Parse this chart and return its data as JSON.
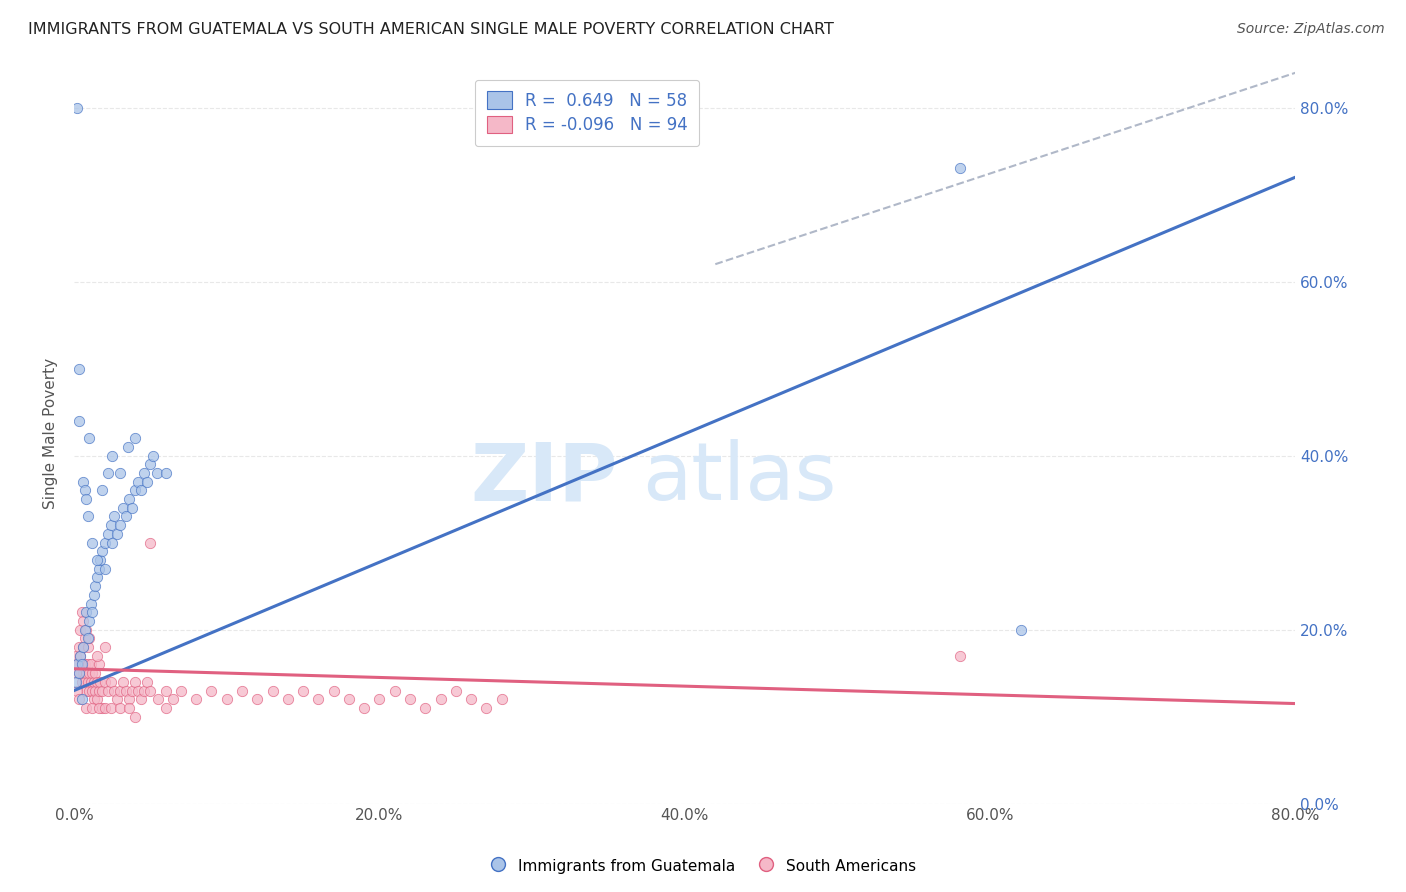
{
  "title": "IMMIGRANTS FROM GUATEMALA VS SOUTH AMERICAN SINGLE MALE POVERTY CORRELATION CHART",
  "source": "Source: ZipAtlas.com",
  "ylabel": "Single Male Poverty",
  "xmin": 0.0,
  "xmax": 0.8,
  "ymin": 0.0,
  "ymax": 0.85,
  "right_yticks": [
    0.0,
    0.2,
    0.4,
    0.6,
    0.8
  ],
  "right_yticklabels": [
    "0.0%",
    "20.0%",
    "40.0%",
    "60.0%",
    "80.0%"
  ],
  "xtick_labels": [
    "0.0%",
    "20.0%",
    "40.0%",
    "60.0%",
    "80.0%"
  ],
  "xtick_positions": [
    0.0,
    0.2,
    0.4,
    0.6,
    0.8
  ],
  "color_blue": "#aac4e8",
  "color_pink": "#f5b8c8",
  "line_blue": "#4472c4",
  "line_pink": "#e06080",
  "watermark_color": "#d8e8f8",
  "background_color": "#ffffff",
  "grid_color": "#e8e8e8",
  "title_color": "#222222",
  "axis_label_color": "#555555",
  "tick_color": "#555555",
  "blue_line_x": [
    0.0,
    0.8
  ],
  "blue_line_y": [
    0.13,
    0.72
  ],
  "pink_line_x": [
    0.0,
    0.8
  ],
  "pink_line_y": [
    0.155,
    0.115
  ],
  "diag_line_x": [
    0.42,
    0.8
  ],
  "diag_line_y": [
    0.62,
    0.84
  ],
  "guatemalan_points": [
    [
      0.001,
      0.14
    ],
    [
      0.002,
      0.16
    ],
    [
      0.003,
      0.15
    ],
    [
      0.004,
      0.17
    ],
    [
      0.005,
      0.16
    ],
    [
      0.006,
      0.18
    ],
    [
      0.007,
      0.2
    ],
    [
      0.008,
      0.22
    ],
    [
      0.009,
      0.19
    ],
    [
      0.01,
      0.21
    ],
    [
      0.011,
      0.23
    ],
    [
      0.012,
      0.22
    ],
    [
      0.013,
      0.24
    ],
    [
      0.014,
      0.25
    ],
    [
      0.015,
      0.26
    ],
    [
      0.016,
      0.27
    ],
    [
      0.017,
      0.28
    ],
    [
      0.018,
      0.29
    ],
    [
      0.02,
      0.3
    ],
    [
      0.022,
      0.31
    ],
    [
      0.024,
      0.32
    ],
    [
      0.026,
      0.33
    ],
    [
      0.028,
      0.31
    ],
    [
      0.03,
      0.32
    ],
    [
      0.032,
      0.34
    ],
    [
      0.034,
      0.33
    ],
    [
      0.036,
      0.35
    ],
    [
      0.038,
      0.34
    ],
    [
      0.04,
      0.36
    ],
    [
      0.042,
      0.37
    ],
    [
      0.044,
      0.36
    ],
    [
      0.046,
      0.38
    ],
    [
      0.048,
      0.37
    ],
    [
      0.05,
      0.39
    ],
    [
      0.052,
      0.4
    ],
    [
      0.054,
      0.38
    ],
    [
      0.003,
      0.44
    ],
    [
      0.01,
      0.42
    ],
    [
      0.018,
      0.36
    ],
    [
      0.022,
      0.38
    ],
    [
      0.025,
      0.4
    ],
    [
      0.03,
      0.38
    ],
    [
      0.035,
      0.41
    ],
    [
      0.04,
      0.42
    ],
    [
      0.006,
      0.37
    ],
    [
      0.007,
      0.36
    ],
    [
      0.008,
      0.35
    ],
    [
      0.009,
      0.33
    ],
    [
      0.012,
      0.3
    ],
    [
      0.015,
      0.28
    ],
    [
      0.02,
      0.27
    ],
    [
      0.025,
      0.3
    ],
    [
      0.002,
      0.8
    ],
    [
      0.06,
      0.38
    ],
    [
      0.58,
      0.73
    ],
    [
      0.005,
      0.12
    ],
    [
      0.62,
      0.2
    ],
    [
      0.003,
      0.5
    ]
  ],
  "south_american_points": [
    [
      0.001,
      0.17
    ],
    [
      0.002,
      0.16
    ],
    [
      0.003,
      0.15
    ],
    [
      0.003,
      0.18
    ],
    [
      0.004,
      0.17
    ],
    [
      0.005,
      0.16
    ],
    [
      0.005,
      0.14
    ],
    [
      0.006,
      0.15
    ],
    [
      0.006,
      0.18
    ],
    [
      0.007,
      0.16
    ],
    [
      0.007,
      0.14
    ],
    [
      0.008,
      0.15
    ],
    [
      0.008,
      0.13
    ],
    [
      0.009,
      0.14
    ],
    [
      0.009,
      0.16
    ],
    [
      0.01,
      0.15
    ],
    [
      0.01,
      0.13
    ],
    [
      0.011,
      0.14
    ],
    [
      0.011,
      0.16
    ],
    [
      0.012,
      0.15
    ],
    [
      0.012,
      0.13
    ],
    [
      0.013,
      0.14
    ],
    [
      0.013,
      0.12
    ],
    [
      0.014,
      0.13
    ],
    [
      0.014,
      0.15
    ],
    [
      0.015,
      0.14
    ],
    [
      0.015,
      0.12
    ],
    [
      0.016,
      0.13
    ],
    [
      0.016,
      0.16
    ],
    [
      0.017,
      0.14
    ],
    [
      0.018,
      0.13
    ],
    [
      0.018,
      0.11
    ],
    [
      0.02,
      0.14
    ],
    [
      0.022,
      0.13
    ],
    [
      0.024,
      0.14
    ],
    [
      0.026,
      0.13
    ],
    [
      0.028,
      0.12
    ],
    [
      0.03,
      0.13
    ],
    [
      0.032,
      0.14
    ],
    [
      0.034,
      0.13
    ],
    [
      0.036,
      0.12
    ],
    [
      0.038,
      0.13
    ],
    [
      0.04,
      0.14
    ],
    [
      0.042,
      0.13
    ],
    [
      0.044,
      0.12
    ],
    [
      0.046,
      0.13
    ],
    [
      0.048,
      0.14
    ],
    [
      0.05,
      0.13
    ],
    [
      0.055,
      0.12
    ],
    [
      0.06,
      0.13
    ],
    [
      0.065,
      0.12
    ],
    [
      0.07,
      0.13
    ],
    [
      0.08,
      0.12
    ],
    [
      0.09,
      0.13
    ],
    [
      0.1,
      0.12
    ],
    [
      0.11,
      0.13
    ],
    [
      0.12,
      0.12
    ],
    [
      0.13,
      0.13
    ],
    [
      0.14,
      0.12
    ],
    [
      0.15,
      0.13
    ],
    [
      0.16,
      0.12
    ],
    [
      0.17,
      0.13
    ],
    [
      0.18,
      0.12
    ],
    [
      0.19,
      0.11
    ],
    [
      0.2,
      0.12
    ],
    [
      0.21,
      0.13
    ],
    [
      0.22,
      0.12
    ],
    [
      0.23,
      0.11
    ],
    [
      0.24,
      0.12
    ],
    [
      0.25,
      0.13
    ],
    [
      0.26,
      0.12
    ],
    [
      0.27,
      0.11
    ],
    [
      0.004,
      0.2
    ],
    [
      0.005,
      0.22
    ],
    [
      0.006,
      0.21
    ],
    [
      0.007,
      0.19
    ],
    [
      0.008,
      0.2
    ],
    [
      0.009,
      0.18
    ],
    [
      0.01,
      0.19
    ],
    [
      0.015,
      0.17
    ],
    [
      0.02,
      0.18
    ],
    [
      0.001,
      0.15
    ],
    [
      0.002,
      0.13
    ],
    [
      0.003,
      0.12
    ],
    [
      0.05,
      0.3
    ],
    [
      0.58,
      0.17
    ],
    [
      0.008,
      0.11
    ],
    [
      0.012,
      0.11
    ],
    [
      0.016,
      0.11
    ],
    [
      0.02,
      0.11
    ],
    [
      0.024,
      0.11
    ],
    [
      0.03,
      0.11
    ],
    [
      0.036,
      0.11
    ],
    [
      0.04,
      0.1
    ],
    [
      0.06,
      0.11
    ],
    [
      0.28,
      0.12
    ]
  ]
}
